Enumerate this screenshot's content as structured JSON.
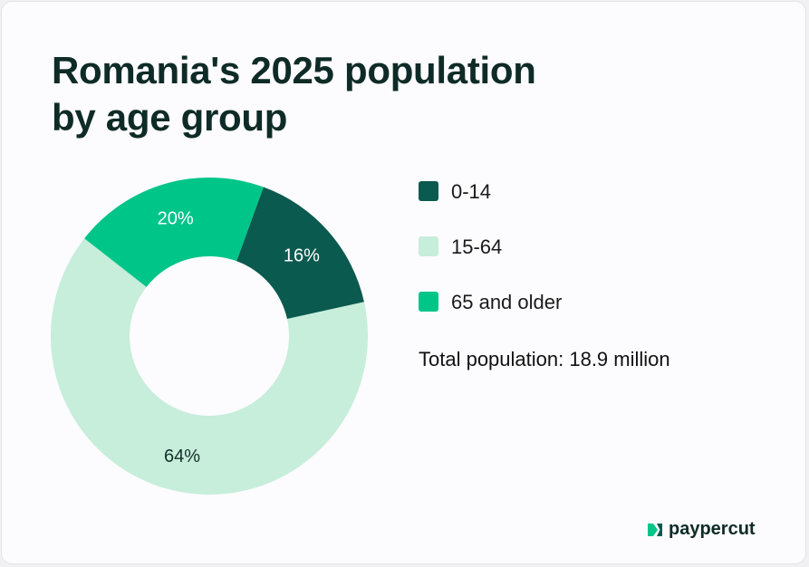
{
  "title_lines": [
    "Romania's 2025 population",
    "by age group"
  ],
  "chart_data": {
    "type": "pie",
    "title": "Romania's 2025 population by age group",
    "categories": [
      "0-14",
      "15-64",
      "65 and older"
    ],
    "values": [
      16,
      64,
      20
    ],
    "labels": [
      "16%",
      "64%",
      "20%"
    ],
    "colors": [
      "#0b5a4f",
      "#c6eedb",
      "#00c589"
    ],
    "label_colors": [
      "#ffffff",
      "#14302b",
      "#ffffff"
    ],
    "donut": true,
    "legend_position": "right"
  },
  "total_text": "Total population: 18.9 million",
  "brand": {
    "name": "paypercut",
    "logo_icon": "paypercut-logo-icon",
    "color": "#00c589"
  }
}
